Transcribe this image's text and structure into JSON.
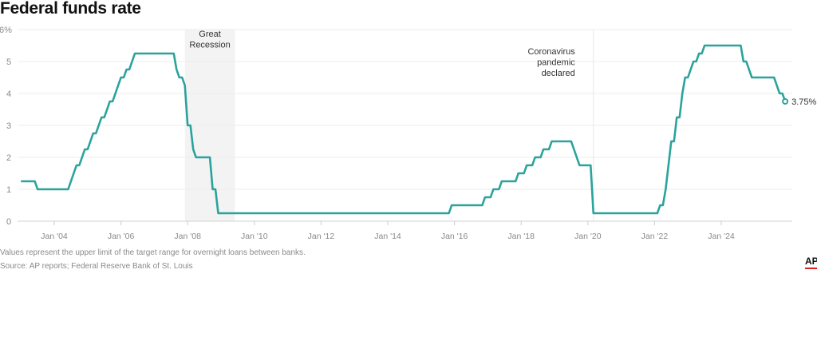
{
  "title": "Federal funds rate",
  "footnote": "Values represent the upper limit of the target range for overnight loans between banks.",
  "source": "Source: AP reports; Federal Reserve Bank of St. Louis",
  "logo": "AP",
  "colors": {
    "line": "#2aa39c",
    "recession_band": "#f3f3f3",
    "grid": "#eeeeee",
    "logo_accent": "#e0201b"
  },
  "chart_data": {
    "type": "line",
    "title": "Federal funds rate",
    "ylim": [
      0,
      6
    ],
    "y_ticks": [
      {
        "value": 0,
        "label": "0"
      },
      {
        "value": 1,
        "label": "1"
      },
      {
        "value": 2,
        "label": "2"
      },
      {
        "value": 3,
        "label": "3"
      },
      {
        "value": 4,
        "label": "4"
      },
      {
        "value": 5,
        "label": "5"
      },
      {
        "value": 6,
        "label": "6%"
      }
    ],
    "x_ticks": [
      {
        "value": "2004-01",
        "label": "Jan '04"
      },
      {
        "value": "2006-01",
        "label": "Jan '06"
      },
      {
        "value": "2008-01",
        "label": "Jan '08"
      },
      {
        "value": "2010-01",
        "label": "Jan '10"
      },
      {
        "value": "2012-01",
        "label": "Jan '12"
      },
      {
        "value": "2014-01",
        "label": "Jan '14"
      },
      {
        "value": "2016-01",
        "label": "Jan '16"
      },
      {
        "value": "2018-01",
        "label": "Jan '18"
      },
      {
        "value": "2020-01",
        "label": "Jan '20"
      },
      {
        "value": "2022-01",
        "label": "Jan '22"
      },
      {
        "value": "2024-01",
        "label": "Jan '24"
      }
    ],
    "grid": true,
    "series": [
      {
        "changes": [
          [
            "2003-01",
            1.25
          ],
          [
            "2003-07",
            1.0
          ],
          [
            "2004-07",
            1.25
          ],
          [
            "2004-08",
            1.5
          ],
          [
            "2004-09",
            1.75
          ],
          [
            "2004-11",
            2.0
          ],
          [
            "2004-12",
            2.25
          ],
          [
            "2005-02",
            2.5
          ],
          [
            "2005-03",
            2.75
          ],
          [
            "2005-05",
            3.0
          ],
          [
            "2005-06",
            3.25
          ],
          [
            "2005-08",
            3.5
          ],
          [
            "2005-09",
            3.75
          ],
          [
            "2005-11",
            4.0
          ],
          [
            "2005-12",
            4.25
          ],
          [
            "2006-01",
            4.5
          ],
          [
            "2006-03",
            4.75
          ],
          [
            "2006-05",
            5.0
          ],
          [
            "2006-06",
            5.25
          ],
          [
            "2007-09",
            4.75
          ],
          [
            "2007-10",
            4.5
          ],
          [
            "2007-12",
            4.25
          ],
          [
            "2008-01",
            3.0
          ],
          [
            "2008-03",
            2.25
          ],
          [
            "2008-04",
            2.0
          ],
          [
            "2008-10",
            1.0
          ],
          [
            "2008-12",
            0.25
          ],
          [
            "2015-12",
            0.5
          ],
          [
            "2016-12",
            0.75
          ],
          [
            "2017-03",
            1.0
          ],
          [
            "2017-06",
            1.25
          ],
          [
            "2017-12",
            1.5
          ],
          [
            "2018-03",
            1.75
          ],
          [
            "2018-06",
            2.0
          ],
          [
            "2018-09",
            2.25
          ],
          [
            "2018-12",
            2.5
          ],
          [
            "2019-08",
            2.25
          ],
          [
            "2019-09",
            2.0
          ],
          [
            "2019-10",
            1.75
          ],
          [
            "2020-03",
            0.25
          ],
          [
            "2022-03",
            0.5
          ],
          [
            "2022-05",
            1.0
          ],
          [
            "2022-06",
            1.75
          ],
          [
            "2022-07",
            2.5
          ],
          [
            "2022-09",
            3.25
          ],
          [
            "2022-11",
            4.0
          ],
          [
            "2022-12",
            4.5
          ],
          [
            "2023-02",
            4.75
          ],
          [
            "2023-03",
            5.0
          ],
          [
            "2023-05",
            5.25
          ],
          [
            "2023-07",
            5.5
          ],
          [
            "2024-09",
            5.0
          ],
          [
            "2024-11",
            4.75
          ],
          [
            "2024-12",
            4.5
          ],
          [
            "2025-09",
            4.25
          ],
          [
            "2025-10",
            4.0
          ],
          [
            "2025-12",
            3.75
          ]
        ],
        "end_label": "3.75%"
      }
    ],
    "annotations": [
      {
        "type": "band",
        "from": "2007-12",
        "to": "2009-06",
        "text": [
          "Great",
          "Recession"
        ]
      },
      {
        "type": "vline",
        "at": "2020-03",
        "text": [
          "Coronavirus",
          "pandemic",
          "declared"
        ]
      }
    ]
  }
}
